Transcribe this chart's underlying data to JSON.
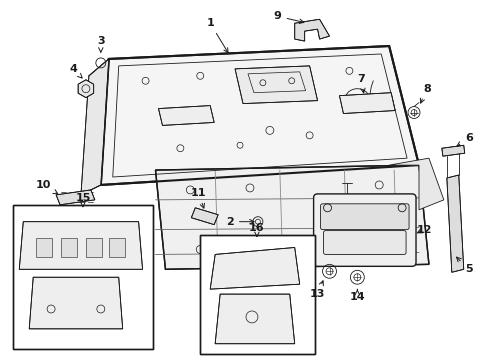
{
  "bg_color": "#ffffff",
  "line_color": "#1a1a1a",
  "fig_width": 4.89,
  "fig_height": 3.6,
  "dpi": 100,
  "gray": "#888888",
  "dark": "#333333"
}
